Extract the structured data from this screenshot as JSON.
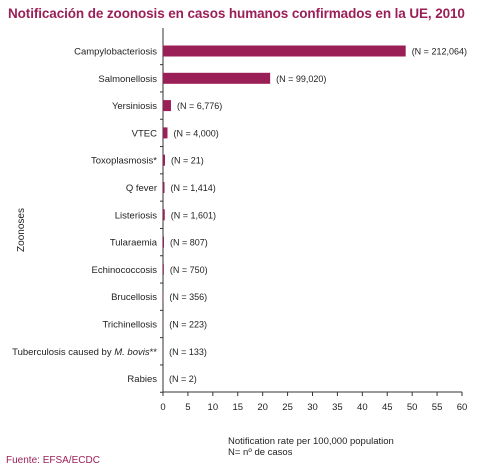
{
  "title": "Notificación de zoonosis en casos humanos confirmados en la UE, 2010",
  "source": "Fuente: EFSA/ECDC",
  "chart_data": {
    "type": "bar",
    "orientation": "horizontal",
    "categories": [
      "Campylobacteriosis",
      "Salmonellosis",
      "Yersiniosis",
      "VTEC",
      "Toxoplasmosis*",
      "Q fever",
      "Listeriosis",
      "Tularaemia",
      "Echinococcosis",
      "Brucellosis",
      "Trichinellosis",
      "Tuberculosis caused by M. bovis**",
      "Rabies"
    ],
    "category_display": [
      {
        "text": "Campylobacteriosis"
      },
      {
        "text": "Salmonellosis"
      },
      {
        "text": "Yersiniosis"
      },
      {
        "text": "VTEC"
      },
      {
        "text": "Toxoplasmosis*"
      },
      {
        "text": "Q fever"
      },
      {
        "text": "Listeriosis"
      },
      {
        "text": "Tularaemia"
      },
      {
        "text": "Echinococcosis"
      },
      {
        "text": "Brucellosis"
      },
      {
        "text": "Trichinellosis"
      },
      {
        "text": "Tuberculosis caused by ",
        "italic": "M. bovis",
        "suffix": "**"
      },
      {
        "text": "Rabies"
      }
    ],
    "values": [
      48.7,
      21.5,
      1.6,
      0.9,
      0.4,
      0.3,
      0.35,
      0.2,
      0.17,
      0.08,
      0.05,
      0.03,
      0.0
    ],
    "n_labels": [
      "(N = 212,064)",
      "(N = 99,020)",
      "(N = 6,776)",
      "(N = 4,000)",
      "(N = 21)",
      "(N = 1,414)",
      "(N = 1,601)",
      "(N = 807)",
      "(N = 750)",
      "(N = 356)",
      "(N = 223)",
      "(N = 133)",
      "(N = 2)"
    ],
    "xlabel": "Notification rate per 100,000  population",
    "xlabel_2": "N= nº de casos",
    "ylabel": "Zoonoses",
    "xlim": [
      0,
      60
    ],
    "xticks": [
      0,
      5,
      10,
      15,
      20,
      25,
      30,
      35,
      40,
      45,
      50,
      55,
      60
    ],
    "bar_color": "#9b1f57",
    "grid": false
  }
}
